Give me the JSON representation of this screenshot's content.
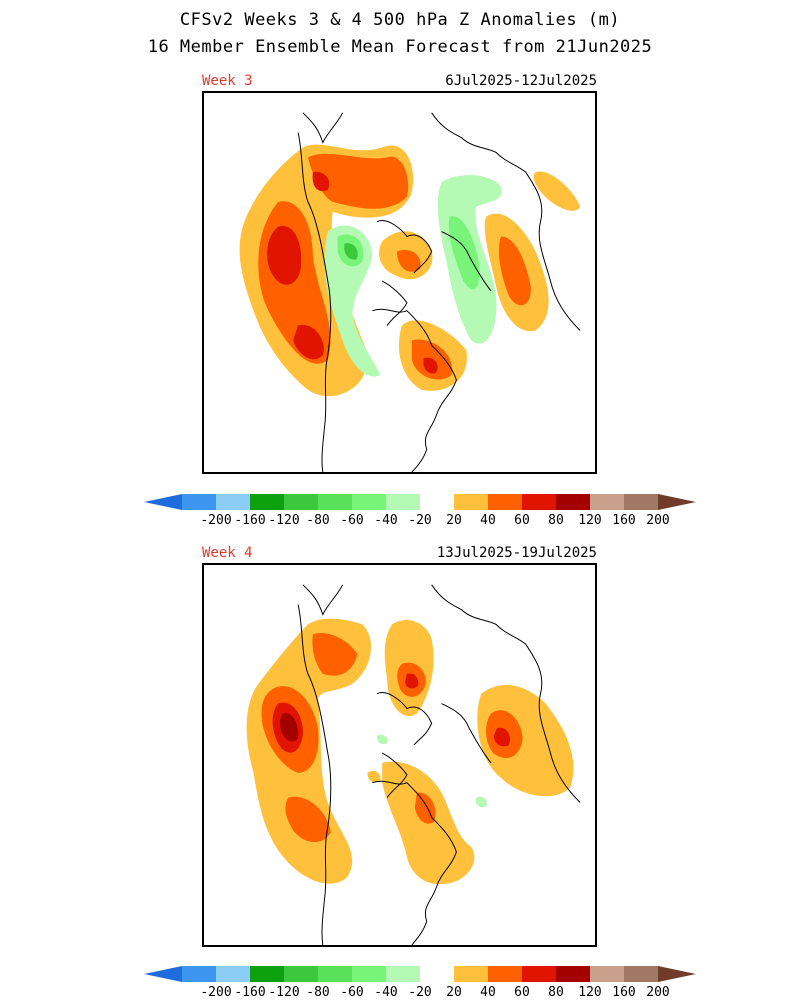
{
  "header": {
    "title": "CFSv2 Weeks 3 & 4 500 hPa Z Anomalies (m)",
    "subtitle": "16 Member Ensemble Mean Forecast from 21Jun2025"
  },
  "panels": [
    {
      "label": "Week 3",
      "dates": "6Jul2025-12Jul2025"
    },
    {
      "label": "Week 4",
      "dates": "13Jul2025-19Jul2025"
    }
  ],
  "colorbar": {
    "ticks": [
      "-200",
      "-160",
      "-120",
      "-80",
      "-60",
      "-40",
      "-20",
      "20",
      "40",
      "60",
      "80",
      "120",
      "160",
      "200"
    ],
    "colors": [
      "#1e6cde",
      "#3c96f0",
      "#8ccdf5",
      "#0fa00f",
      "#3cc83c",
      "#5ae15a",
      "#78f578",
      "#b4fab4",
      "#ffffff",
      "#ffc03c",
      "#ff6000",
      "#e11400",
      "#a50000",
      "#c8a08c",
      "#a07864",
      "#6e3c28"
    ],
    "arrow_left_color": "#1e6cde",
    "arrow_right_color": "#6e3c28"
  },
  "colors": {
    "pos20": "#ffc03c",
    "pos40": "#ff6000",
    "pos60": "#e11400",
    "pos80": "#a50000",
    "neg20": "#b4fab4",
    "neg40": "#78f578",
    "neg60": "#3cc83c",
    "label_red": "#e23a2a"
  }
}
